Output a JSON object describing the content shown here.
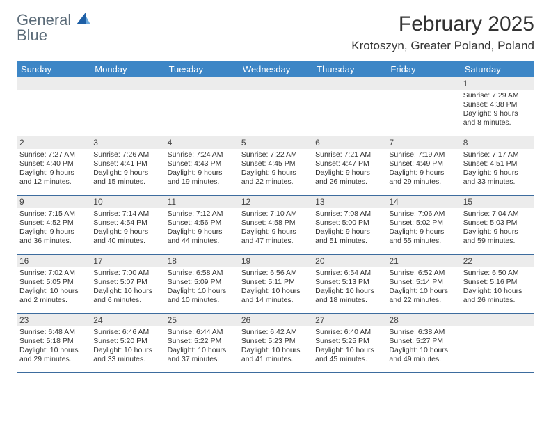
{
  "brand": {
    "top": "General",
    "bottom": "Blue"
  },
  "colors": {
    "header_bar": "#3d86c6",
    "header_text": "#ffffff",
    "daynum_bg": "#ececec",
    "row_border": "#3d6c9e",
    "logo_text": "#5b6b78",
    "logo_accent": "#1d5fa6"
  },
  "title": "February 2025",
  "location": "Krotoszyn, Greater Poland, Poland",
  "weekdays": [
    "Sunday",
    "Monday",
    "Tuesday",
    "Wednesday",
    "Thursday",
    "Friday",
    "Saturday"
  ],
  "weeks": [
    [
      null,
      null,
      null,
      null,
      null,
      null,
      {
        "d": "1",
        "sr": "Sunrise: 7:29 AM",
        "ss": "Sunset: 4:38 PM",
        "dl1": "Daylight: 9 hours",
        "dl2": "and 8 minutes."
      }
    ],
    [
      {
        "d": "2",
        "sr": "Sunrise: 7:27 AM",
        "ss": "Sunset: 4:40 PM",
        "dl1": "Daylight: 9 hours",
        "dl2": "and 12 minutes."
      },
      {
        "d": "3",
        "sr": "Sunrise: 7:26 AM",
        "ss": "Sunset: 4:41 PM",
        "dl1": "Daylight: 9 hours",
        "dl2": "and 15 minutes."
      },
      {
        "d": "4",
        "sr": "Sunrise: 7:24 AM",
        "ss": "Sunset: 4:43 PM",
        "dl1": "Daylight: 9 hours",
        "dl2": "and 19 minutes."
      },
      {
        "d": "5",
        "sr": "Sunrise: 7:22 AM",
        "ss": "Sunset: 4:45 PM",
        "dl1": "Daylight: 9 hours",
        "dl2": "and 22 minutes."
      },
      {
        "d": "6",
        "sr": "Sunrise: 7:21 AM",
        "ss": "Sunset: 4:47 PM",
        "dl1": "Daylight: 9 hours",
        "dl2": "and 26 minutes."
      },
      {
        "d": "7",
        "sr": "Sunrise: 7:19 AM",
        "ss": "Sunset: 4:49 PM",
        "dl1": "Daylight: 9 hours",
        "dl2": "and 29 minutes."
      },
      {
        "d": "8",
        "sr": "Sunrise: 7:17 AM",
        "ss": "Sunset: 4:51 PM",
        "dl1": "Daylight: 9 hours",
        "dl2": "and 33 minutes."
      }
    ],
    [
      {
        "d": "9",
        "sr": "Sunrise: 7:15 AM",
        "ss": "Sunset: 4:52 PM",
        "dl1": "Daylight: 9 hours",
        "dl2": "and 36 minutes."
      },
      {
        "d": "10",
        "sr": "Sunrise: 7:14 AM",
        "ss": "Sunset: 4:54 PM",
        "dl1": "Daylight: 9 hours",
        "dl2": "and 40 minutes."
      },
      {
        "d": "11",
        "sr": "Sunrise: 7:12 AM",
        "ss": "Sunset: 4:56 PM",
        "dl1": "Daylight: 9 hours",
        "dl2": "and 44 minutes."
      },
      {
        "d": "12",
        "sr": "Sunrise: 7:10 AM",
        "ss": "Sunset: 4:58 PM",
        "dl1": "Daylight: 9 hours",
        "dl2": "and 47 minutes."
      },
      {
        "d": "13",
        "sr": "Sunrise: 7:08 AM",
        "ss": "Sunset: 5:00 PM",
        "dl1": "Daylight: 9 hours",
        "dl2": "and 51 minutes."
      },
      {
        "d": "14",
        "sr": "Sunrise: 7:06 AM",
        "ss": "Sunset: 5:02 PM",
        "dl1": "Daylight: 9 hours",
        "dl2": "and 55 minutes."
      },
      {
        "d": "15",
        "sr": "Sunrise: 7:04 AM",
        "ss": "Sunset: 5:03 PM",
        "dl1": "Daylight: 9 hours",
        "dl2": "and 59 minutes."
      }
    ],
    [
      {
        "d": "16",
        "sr": "Sunrise: 7:02 AM",
        "ss": "Sunset: 5:05 PM",
        "dl1": "Daylight: 10 hours",
        "dl2": "and 2 minutes."
      },
      {
        "d": "17",
        "sr": "Sunrise: 7:00 AM",
        "ss": "Sunset: 5:07 PM",
        "dl1": "Daylight: 10 hours",
        "dl2": "and 6 minutes."
      },
      {
        "d": "18",
        "sr": "Sunrise: 6:58 AM",
        "ss": "Sunset: 5:09 PM",
        "dl1": "Daylight: 10 hours",
        "dl2": "and 10 minutes."
      },
      {
        "d": "19",
        "sr": "Sunrise: 6:56 AM",
        "ss": "Sunset: 5:11 PM",
        "dl1": "Daylight: 10 hours",
        "dl2": "and 14 minutes."
      },
      {
        "d": "20",
        "sr": "Sunrise: 6:54 AM",
        "ss": "Sunset: 5:13 PM",
        "dl1": "Daylight: 10 hours",
        "dl2": "and 18 minutes."
      },
      {
        "d": "21",
        "sr": "Sunrise: 6:52 AM",
        "ss": "Sunset: 5:14 PM",
        "dl1": "Daylight: 10 hours",
        "dl2": "and 22 minutes."
      },
      {
        "d": "22",
        "sr": "Sunrise: 6:50 AM",
        "ss": "Sunset: 5:16 PM",
        "dl1": "Daylight: 10 hours",
        "dl2": "and 26 minutes."
      }
    ],
    [
      {
        "d": "23",
        "sr": "Sunrise: 6:48 AM",
        "ss": "Sunset: 5:18 PM",
        "dl1": "Daylight: 10 hours",
        "dl2": "and 29 minutes."
      },
      {
        "d": "24",
        "sr": "Sunrise: 6:46 AM",
        "ss": "Sunset: 5:20 PM",
        "dl1": "Daylight: 10 hours",
        "dl2": "and 33 minutes."
      },
      {
        "d": "25",
        "sr": "Sunrise: 6:44 AM",
        "ss": "Sunset: 5:22 PM",
        "dl1": "Daylight: 10 hours",
        "dl2": "and 37 minutes."
      },
      {
        "d": "26",
        "sr": "Sunrise: 6:42 AM",
        "ss": "Sunset: 5:23 PM",
        "dl1": "Daylight: 10 hours",
        "dl2": "and 41 minutes."
      },
      {
        "d": "27",
        "sr": "Sunrise: 6:40 AM",
        "ss": "Sunset: 5:25 PM",
        "dl1": "Daylight: 10 hours",
        "dl2": "and 45 minutes."
      },
      {
        "d": "28",
        "sr": "Sunrise: 6:38 AM",
        "ss": "Sunset: 5:27 PM",
        "dl1": "Daylight: 10 hours",
        "dl2": "and 49 minutes."
      },
      null
    ]
  ]
}
